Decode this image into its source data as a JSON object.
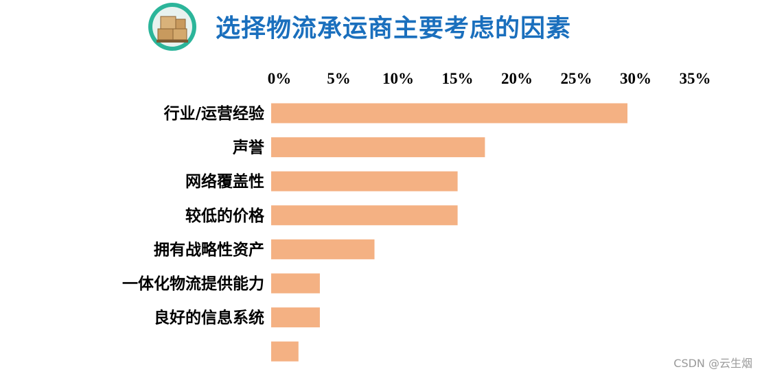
{
  "title": "选择物流承运商主要考虑的因素",
  "icon": "shipping-boxes-icon",
  "watermark": "CSDN @云生烟",
  "colors": {
    "title": "#1a6fbd",
    "bar": "#f4b183",
    "icon_ring": "#2bb59a"
  },
  "chart_data": {
    "type": "bar",
    "orientation": "horizontal",
    "title": "选择物流承运商主要考虑的因素",
    "categories": [
      "行业/运营经验",
      "声誉",
      "网络覆盖性",
      "较低的价格",
      "拥有战略性资产",
      "一体化物流提供能力",
      "良好的信息系统",
      ""
    ],
    "values": [
      30,
      18,
      15.7,
      15.7,
      8.7,
      4.1,
      4.1,
      2.3
    ],
    "xlim": [
      0,
      35
    ],
    "x_ticks": [
      "0%",
      "5%",
      "10%",
      "15%",
      "20%",
      "25%",
      "30%",
      "35%"
    ],
    "x_tick_values": [
      0,
      5,
      10,
      15,
      20,
      25,
      30,
      35
    ],
    "axis_position": "top",
    "grid": false,
    "legend": "none"
  }
}
